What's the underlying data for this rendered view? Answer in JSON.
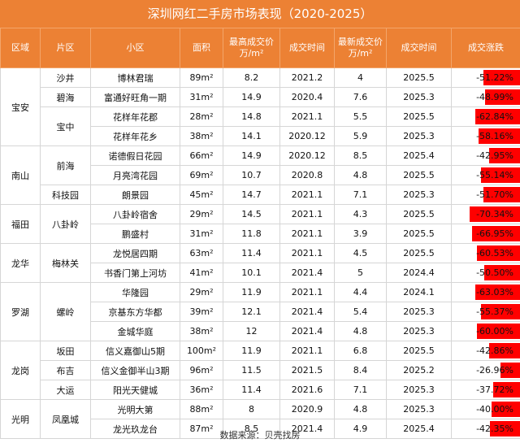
{
  "title": "深圳网红二手房市场表现（2020-2025）",
  "footer": "数据来源：贝壳找房",
  "headers": {
    "district": "区域",
    "sub_area": "片区",
    "community": "小区",
    "area": "面积",
    "max_price": "最高成交价\n万/m²",
    "deal_time": "成交时间",
    "latest_price": "最新成交价\n万/m²",
    "latest_time": "成交时间",
    "change": "成交涨跌"
  },
  "district_groups": [
    {
      "name": "宝安",
      "start": 0,
      "span": 4
    },
    {
      "name": "南山",
      "start": 4,
      "span": 3
    },
    {
      "name": "福田",
      "start": 7,
      "span": 2
    },
    {
      "name": "龙华",
      "start": 9,
      "span": 2
    },
    {
      "name": "罗湖",
      "start": 11,
      "span": 3
    },
    {
      "name": "龙岗",
      "start": 14,
      "span": 3
    },
    {
      "name": "光明",
      "start": 17,
      "span": 2
    }
  ],
  "subarea_groups": [
    {
      "name": "沙井",
      "start": 0,
      "span": 1
    },
    {
      "name": "碧海",
      "start": 1,
      "span": 1
    },
    {
      "name": "宝中",
      "start": 2,
      "span": 2
    },
    {
      "name": "前海",
      "start": 4,
      "span": 2
    },
    {
      "name": "科技园",
      "start": 6,
      "span": 1
    },
    {
      "name": "八卦岭",
      "start": 7,
      "span": 2
    },
    {
      "name": "梅林关",
      "start": 9,
      "span": 2
    },
    {
      "name": "螺岭",
      "start": 11,
      "span": 3
    },
    {
      "name": "坂田",
      "start": 14,
      "span": 1
    },
    {
      "name": "布吉",
      "start": 15,
      "span": 1
    },
    {
      "name": "大运",
      "start": 16,
      "span": 1
    },
    {
      "name": "凤凰城",
      "start": 17,
      "span": 2
    }
  ],
  "rows": [
    {
      "community": "博林君瑞",
      "area": "89m²",
      "max_price": "8.2",
      "deal_time": "2021.2",
      "latest_price": "4",
      "latest_time": "2025.5",
      "change": "-51.22%",
      "change_value": -51.22
    },
    {
      "community": "富通好旺角一期",
      "area": "31m²",
      "max_price": "14.9",
      "deal_time": "2020.4",
      "latest_price": "7.6",
      "latest_time": "2025.3",
      "change": "-48.99%",
      "change_value": -48.99
    },
    {
      "community": "花样年花郡",
      "area": "28m²",
      "max_price": "14.8",
      "deal_time": "2021.1",
      "latest_price": "5.5",
      "latest_time": "2025.5",
      "change": "-62.84%",
      "change_value": -62.84
    },
    {
      "community": "花样年花乡",
      "area": "38m²",
      "max_price": "14.1",
      "deal_time": "2020.12",
      "latest_price": "5.9",
      "latest_time": "2025.3",
      "change": "-58.16%",
      "change_value": -58.16
    },
    {
      "community": "诺德假日花园",
      "area": "66m²",
      "max_price": "14.9",
      "deal_time": "2020.12",
      "latest_price": "8.5",
      "latest_time": "2025.4",
      "change": "-42.95%",
      "change_value": -42.95
    },
    {
      "community": "月亮湾花园",
      "area": "69m²",
      "max_price": "10.7",
      "deal_time": "2020.8",
      "latest_price": "4.8",
      "latest_time": "2025.5",
      "change": "-55.14%",
      "change_value": -55.14
    },
    {
      "community": "朗景园",
      "area": "45m²",
      "max_price": "14.7",
      "deal_time": "2021.1",
      "latest_price": "7.1",
      "latest_time": "2025.3",
      "change": "-51.70%",
      "change_value": -51.7
    },
    {
      "community": "八卦岭宿舍",
      "area": "29m²",
      "max_price": "14.5",
      "deal_time": "2021.1",
      "latest_price": "4.3",
      "latest_time": "2025.5",
      "change": "-70.34%",
      "change_value": -70.34
    },
    {
      "community": "鹏盛村",
      "area": "31m²",
      "max_price": "11.8",
      "deal_time": "2021.1",
      "latest_price": "3.9",
      "latest_time": "2025.5",
      "change": "-66.95%",
      "change_value": -66.95
    },
    {
      "community": "龙悦居四期",
      "area": "63m²",
      "max_price": "11.4",
      "deal_time": "2021.1",
      "latest_price": "4.5",
      "latest_time": "2025.5",
      "change": "-60.53%",
      "change_value": -60.53
    },
    {
      "community": "书香门第上河坊",
      "area": "41m²",
      "max_price": "10.1",
      "deal_time": "2021.4",
      "latest_price": "5",
      "latest_time": "2024.4",
      "change": "-50.50%",
      "change_value": -50.5
    },
    {
      "community": "华隆园",
      "area": "29m²",
      "max_price": "11.9",
      "deal_time": "2021.1",
      "latest_price": "4.4",
      "latest_time": "2024.1",
      "change": "-63.03%",
      "change_value": -63.03
    },
    {
      "community": "京基东方华都",
      "area": "39m²",
      "max_price": "12.1",
      "deal_time": "2021.4",
      "latest_price": "5.4",
      "latest_time": "2025.3",
      "change": "-55.37%",
      "change_value": -55.37
    },
    {
      "community": "金城华庭",
      "area": "38m²",
      "max_price": "12",
      "deal_time": "2021.4",
      "latest_price": "4.8",
      "latest_time": "2025.3",
      "change": "-60.00%",
      "change_value": -60.0
    },
    {
      "community": "信义嘉御山5期",
      "area": "100m²",
      "max_price": "11.9",
      "deal_time": "2021.1",
      "latest_price": "6.8",
      "latest_time": "2025.5",
      "change": "-42.86%",
      "change_value": -42.86
    },
    {
      "community": "信义金御半山3期",
      "area": "96m²",
      "max_price": "11.5",
      "deal_time": "2021.5",
      "latest_price": "8.4",
      "latest_time": "2025.2",
      "change": "-26.96%",
      "change_value": -26.96
    },
    {
      "community": "阳光天健城",
      "area": "36m²",
      "max_price": "11.4",
      "deal_time": "2021.6",
      "latest_price": "7.1",
      "latest_time": "2025.3",
      "change": "-37.72%",
      "change_value": -37.72
    },
    {
      "community": "光明大第",
      "area": "88m²",
      "max_price": "8",
      "deal_time": "2020.9",
      "latest_price": "4.8",
      "latest_time": "2025.3",
      "change": "-40.00%",
      "change_value": -40.0
    },
    {
      "community": "龙光玖龙台",
      "area": "87m²",
      "max_price": "8.5",
      "deal_time": "2021.4",
      "latest_price": "4.9",
      "latest_time": "2025.4",
      "change": "-42.35%",
      "change_value": -42.35
    }
  ],
  "colors": {
    "header_bg": "#ec8134",
    "bar": "#ff0000"
  }
}
